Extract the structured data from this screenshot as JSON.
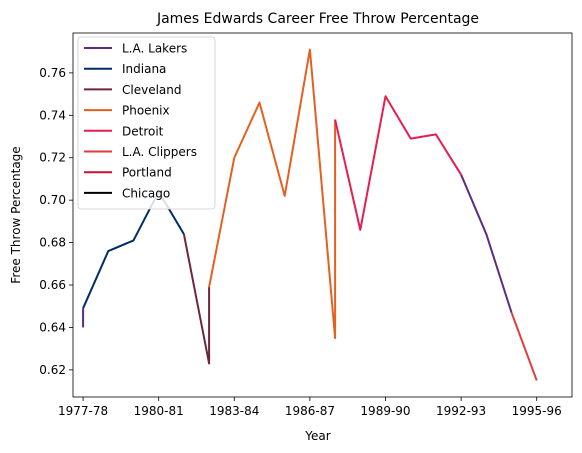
{
  "chart_data": {
    "type": "line",
    "title": "James Edwards  Career Free Throw Percentage",
    "xlabel": "Year",
    "ylabel": "Free Throw Percentage",
    "xlim": [
      1976.6,
      1996.4
    ],
    "ylim": [
      0.6072,
      0.7788
    ],
    "xticks": [
      {
        "value": 1977,
        "label": "1977-78"
      },
      {
        "value": 1980,
        "label": "1980-81"
      },
      {
        "value": 1983,
        "label": "1983-84"
      },
      {
        "value": 1986,
        "label": "1986-87"
      },
      {
        "value": 1989,
        "label": "1989-90"
      },
      {
        "value": 1992,
        "label": "1992-93"
      },
      {
        "value": 1995,
        "label": "1995-96"
      }
    ],
    "yticks": [
      0.62,
      0.64,
      0.66,
      0.68,
      0.7,
      0.72,
      0.74,
      0.76
    ],
    "ytick_labels": [
      "0.62",
      "0.64",
      "0.66",
      "0.68",
      "0.70",
      "0.72",
      "0.74",
      "0.76"
    ],
    "grid": false,
    "legend_position": "top-left",
    "series": [
      {
        "name": "L.A. Lakers",
        "color": "#5b2c82",
        "x": [
          1977,
          1977
        ],
        "y": [
          0.64,
          0.649
        ]
      },
      {
        "name": "Indiana",
        "color": "#002d62",
        "x": [
          1977,
          1978,
          1979,
          1980,
          1981
        ],
        "y": [
          0.649,
          0.676,
          0.681,
          0.704,
          0.684
        ]
      },
      {
        "name": "Cleveland",
        "color": "#6f263d",
        "x": [
          1981,
          1982,
          1982
        ],
        "y": [
          0.684,
          0.623,
          0.659
        ]
      },
      {
        "name": "Phoenix",
        "color": "#e56020",
        "x": [
          1982,
          1983,
          1984,
          1985,
          1986,
          1987,
          1987
        ],
        "y": [
          0.659,
          0.72,
          0.746,
          0.702,
          0.771,
          0.635,
          0.738
        ]
      },
      {
        "name": "Detroit",
        "color": "#e41e4f",
        "x": [
          1987,
          1988,
          1989,
          1990,
          1991,
          1992
        ],
        "y": [
          0.738,
          0.686,
          0.749,
          0.729,
          0.731,
          0.712
        ]
      },
      {
        "name": "L.A. Clippers",
        "color": "#e03a3e",
        "x": [
          1994,
          1995
        ],
        "y": [
          0.647,
          0.615
        ]
      },
      {
        "name": "Portland",
        "color": "#c8102e",
        "x": [],
        "y": []
      },
      {
        "name": "Chicago",
        "color": "#000000",
        "x": [],
        "y": []
      }
    ],
    "connector_segments": [
      {
        "color": "#5b2c82",
        "x": [
          1992,
          1993,
          1994
        ],
        "y": [
          0.712,
          0.684,
          0.647
        ]
      }
    ]
  }
}
